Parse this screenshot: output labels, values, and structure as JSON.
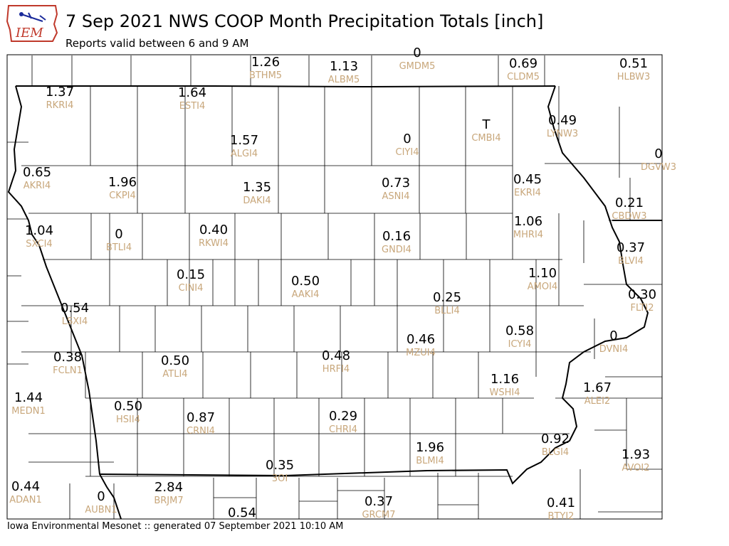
{
  "header": {
    "logo_text": "IEM",
    "title": "7 Sep 2021 NWS COOP Month Precipitation Totals [inch]",
    "subtitle": "Reports valid between 6 and 9 AM"
  },
  "footer": {
    "text": "Iowa Environmental Mesonet :: generated 07 September 2021 10:10 AM"
  },
  "colors": {
    "value_text": "#000000",
    "station_text": "#c8a77b",
    "county_lines": "#000000",
    "logo_red": "#c0392b",
    "logo_blue": "#1a2a9a"
  },
  "stations": [
    {
      "id": "BTHM5",
      "value": "1.26"
    },
    {
      "id": "ALBM5",
      "value": "1.13"
    },
    {
      "id": "GMDM5",
      "value": "0"
    },
    {
      "id": "CLDM5",
      "value": "0.69"
    },
    {
      "id": "HLBW3",
      "value": "0.51"
    },
    {
      "id": "RKRI4",
      "value": "1.37"
    },
    {
      "id": "ESTI4",
      "value": "1.64"
    },
    {
      "id": "LYNW3",
      "value": "0.49"
    },
    {
      "id": "CMBI4",
      "value": "T"
    },
    {
      "id": "ALGI4",
      "value": "1.57"
    },
    {
      "id": "CIYI4",
      "value": "0"
    },
    {
      "id": "DGVW3",
      "value": "0"
    },
    {
      "id": "AKRI4",
      "value": "0.65"
    },
    {
      "id": "CKPI4",
      "value": "1.96"
    },
    {
      "id": "DAKI4",
      "value": "1.35"
    },
    {
      "id": "ASNI4",
      "value": "0.73"
    },
    {
      "id": "EKRI4",
      "value": "0.45"
    },
    {
      "id": "CBDW3",
      "value": "0.21"
    },
    {
      "id": "SXCI4",
      "value": "1.04"
    },
    {
      "id": "BTLI4",
      "value": "0"
    },
    {
      "id": "RKWI4",
      "value": "0.40"
    },
    {
      "id": "GNDI4",
      "value": "0.16"
    },
    {
      "id": "MHRI4",
      "value": "1.06"
    },
    {
      "id": "BLVI4",
      "value": "0.37"
    },
    {
      "id": "CINI4",
      "value": "0.15"
    },
    {
      "id": "AAKI4",
      "value": "0.50"
    },
    {
      "id": "AMOI4",
      "value": "1.10"
    },
    {
      "id": "FLTI2",
      "value": "0.30"
    },
    {
      "id": "LSXI4",
      "value": "0.54"
    },
    {
      "id": "BLLI4",
      "value": "0.25"
    },
    {
      "id": "ICYI4",
      "value": "0.58"
    },
    {
      "id": "DVNI4",
      "value": "0"
    },
    {
      "id": "FCLN1",
      "value": "0.38"
    },
    {
      "id": "ATLI4",
      "value": "0.50"
    },
    {
      "id": "HRFI4",
      "value": "0.48"
    },
    {
      "id": "MZUI4",
      "value": "0.46"
    },
    {
      "id": "WSHI4",
      "value": "1.16"
    },
    {
      "id": "ALEI2",
      "value": "1.67"
    },
    {
      "id": "MEDN1",
      "value": "1.44"
    },
    {
      "id": "HSII4",
      "value": "0.50"
    },
    {
      "id": "CRNI4",
      "value": "0.87"
    },
    {
      "id": "CHRI4",
      "value": "0.29"
    },
    {
      "id": "BLMI4",
      "value": "1.96"
    },
    {
      "id": "BLGI4",
      "value": "0.92"
    },
    {
      "id": "AVOI2",
      "value": "1.93"
    },
    {
      "id": "3OI",
      "value": "0.35"
    },
    {
      "id": "ADAN1",
      "value": "0.44"
    },
    {
      "id": "AUBN1",
      "value": "0"
    },
    {
      "id": "BRJM7",
      "value": "2.84"
    },
    {
      "id": "GRCM7",
      "value": "0.37"
    },
    {
      "id": "BTYI2",
      "value": "0.41"
    },
    {
      "id": "",
      "value": "0.54"
    }
  ]
}
